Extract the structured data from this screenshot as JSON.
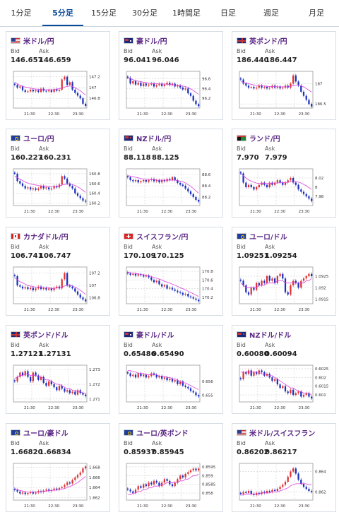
{
  "tabs": [
    {
      "label": "1分足",
      "active": false
    },
    {
      "label": "5分足",
      "active": true
    },
    {
      "label": "15分足",
      "active": false
    },
    {
      "label": "30分足",
      "active": false
    },
    {
      "label": "1時間足",
      "active": false
    },
    {
      "label": "日足",
      "active": false
    },
    {
      "label": "週足",
      "active": false
    },
    {
      "label": "月足",
      "active": false
    }
  ],
  "bid_label": "Bid",
  "ask_label": "Ask",
  "x_ticks": [
    "21:30",
    "22:30",
    "23:30"
  ],
  "colors": {
    "up": "#e03030",
    "down": "#1a2fbf",
    "ma": "#e040e0",
    "grid": "#d0d0d0",
    "title": "#5c2a86"
  },
  "pairs": [
    {
      "name": "米ドル/円",
      "flag": "us",
      "bid": "146.657",
      "ask": "146.659",
      "yticks": [
        "147.2",
        "147",
        "146.8"
      ],
      "series": [
        147.05,
        147.0,
        147.02,
        146.95,
        146.92,
        146.93,
        146.96,
        146.93,
        146.95,
        146.92,
        146.98,
        146.94,
        146.93,
        146.95,
        146.92,
        146.97,
        146.94,
        146.96,
        147.15,
        147.2,
        147.05,
        147.1,
        146.96,
        146.9,
        146.85,
        146.8,
        146.7,
        146.66
      ],
      "ma": [
        147.1,
        147.07,
        147.04,
        147.02,
        147.01,
        147.0,
        146.99,
        146.98,
        146.97,
        146.97,
        146.96,
        146.96,
        146.96,
        146.96,
        146.96,
        146.96,
        146.97,
        146.98,
        146.99,
        147.01,
        147.02,
        147.03,
        147.02,
        147.0,
        146.97,
        146.94,
        146.9,
        146.86
      ],
      "ymin": 146.62,
      "ymax": 147.3
    },
    {
      "name": "豪ドル/円",
      "flag": "au",
      "bid": "96.041",
      "ask": "96.046",
      "yticks": [
        "96.6",
        "96.4",
        "96.2"
      ],
      "series": [
        96.62,
        96.5,
        96.55,
        96.48,
        96.52,
        96.45,
        96.5,
        96.46,
        96.48,
        96.5,
        96.44,
        96.47,
        96.5,
        96.45,
        96.48,
        96.52,
        96.47,
        96.5,
        96.44,
        96.46,
        96.42,
        96.38,
        96.4,
        96.3,
        96.25,
        96.15,
        96.08,
        96.04
      ],
      "ma": [
        96.62,
        96.6,
        96.58,
        96.56,
        96.55,
        96.54,
        96.53,
        96.52,
        96.51,
        96.5,
        96.5,
        96.5,
        96.49,
        96.49,
        96.49,
        96.49,
        96.48,
        96.48,
        96.47,
        96.47,
        96.46,
        96.45,
        96.44,
        96.42,
        96.39,
        96.36,
        96.32,
        96.28
      ],
      "ymin": 96.0,
      "ymax": 96.75
    },
    {
      "name": "英ポンド/円",
      "flag": "gb",
      "bid": "186.440",
      "ask": "186.447",
      "yticks": [
        "187",
        "186.5"
      ],
      "series": [
        187.1,
        187.0,
        186.95,
        186.9,
        186.92,
        186.88,
        186.9,
        186.95,
        186.9,
        186.92,
        186.88,
        186.9,
        186.95,
        186.9,
        186.93,
        186.88,
        186.9,
        186.95,
        186.9,
        187.0,
        187.2,
        187.05,
        186.95,
        186.8,
        186.7,
        186.6,
        186.5,
        186.44
      ],
      "ma": [
        187.05,
        187.03,
        187.01,
        187.0,
        186.98,
        186.97,
        186.96,
        186.95,
        186.95,
        186.94,
        186.93,
        186.93,
        186.93,
        186.93,
        186.92,
        186.92,
        186.92,
        186.92,
        186.92,
        186.93,
        186.95,
        186.96,
        186.96,
        186.94,
        186.92,
        186.88,
        186.84,
        186.79
      ],
      "ymin": 186.4,
      "ymax": 187.3
    },
    {
      "name": "ユーロ/円",
      "flag": "eu",
      "bid": "160.227",
      "ask": "160.231",
      "yticks": [
        "160.8",
        "160.6",
        "160.4",
        "160.2"
      ],
      "series": [
        160.8,
        160.65,
        160.6,
        160.55,
        160.5,
        160.52,
        160.48,
        160.5,
        160.47,
        160.5,
        160.55,
        160.5,
        160.52,
        160.48,
        160.5,
        160.55,
        160.52,
        160.58,
        160.75,
        160.7,
        160.6,
        160.55,
        160.5,
        160.4,
        160.35,
        160.3,
        160.25,
        160.23
      ],
      "ma": [
        160.75,
        160.72,
        160.69,
        160.66,
        160.63,
        160.61,
        160.59,
        160.58,
        160.57,
        160.56,
        160.55,
        160.55,
        160.55,
        160.54,
        160.54,
        160.54,
        160.54,
        160.55,
        160.57,
        160.58,
        160.59,
        160.59,
        160.58,
        160.56,
        160.53,
        160.5,
        160.46,
        160.42
      ],
      "ymin": 160.15,
      "ymax": 160.9
    },
    {
      "name": "NZドル/円",
      "flag": "nz",
      "bid": "88.118",
      "ask": "88.125",
      "yticks": [
        "88.6",
        "88.4",
        "88.2"
      ],
      "series": [
        88.55,
        88.5,
        88.48,
        88.5,
        88.46,
        88.48,
        88.5,
        88.47,
        88.5,
        88.52,
        88.48,
        88.5,
        88.46,
        88.5,
        88.48,
        88.52,
        88.5,
        88.55,
        88.5,
        88.45,
        88.42,
        88.4,
        88.35,
        88.3,
        88.25,
        88.2,
        88.15,
        88.12
      ],
      "ma": [
        88.58,
        88.57,
        88.56,
        88.55,
        88.54,
        88.53,
        88.52,
        88.52,
        88.51,
        88.51,
        88.51,
        88.5,
        88.5,
        88.5,
        88.5,
        88.5,
        88.5,
        88.5,
        88.5,
        88.49,
        88.48,
        88.47,
        88.45,
        88.42,
        88.39,
        88.35,
        88.31,
        88.27
      ],
      "ymin": 88.05,
      "ymax": 88.7
    },
    {
      "name": "ランド/円",
      "flag": "za",
      "bid": "7.970",
      "ask": "7.979",
      "yticks": [
        "8.02",
        "8",
        "7.98"
      ],
      "series": [
        8.03,
        8.01,
        8.0,
        8.005,
        8.0,
        7.995,
        8.0,
        8.005,
        8.01,
        8.005,
        8.0,
        8.01,
        8.005,
        8.01,
        8.015,
        8.01,
        8.005,
        8.01,
        8.015,
        8.02,
        8.01,
        8.005,
        7.995,
        7.99,
        7.985,
        7.98,
        7.975,
        7.97
      ],
      "ma": [
        8.03,
        8.025,
        8.02,
        8.016,
        8.013,
        8.011,
        8.009,
        8.008,
        8.008,
        8.008,
        8.008,
        8.008,
        8.009,
        8.009,
        8.009,
        8.01,
        8.01,
        8.01,
        8.011,
        8.012,
        8.012,
        8.012,
        8.011,
        8.009,
        8.006,
        8.003,
        7.999,
        7.995
      ],
      "ymin": 7.96,
      "ymax": 8.04
    },
    {
      "name": "カナダドル/円",
      "flag": "ca",
      "bid": "106.741",
      "ask": "106.747",
      "yticks": [
        "107.2",
        "107",
        "106.8"
      ],
      "series": [
        107.15,
        107.0,
        106.98,
        106.95,
        106.97,
        106.94,
        106.96,
        106.92,
        106.95,
        106.98,
        106.94,
        106.96,
        106.93,
        106.95,
        106.92,
        106.96,
        106.98,
        106.95,
        107.1,
        107.2,
        107.0,
        106.98,
        106.95,
        106.9,
        106.85,
        106.8,
        106.77,
        106.74
      ],
      "ma": [
        107.12,
        107.09,
        107.06,
        107.04,
        107.02,
        107.0,
        106.99,
        106.98,
        106.97,
        106.97,
        106.96,
        106.96,
        106.96,
        106.96,
        106.95,
        106.95,
        106.96,
        106.96,
        106.97,
        106.99,
        107.0,
        107.0,
        106.99,
        106.97,
        106.95,
        106.92,
        106.89,
        106.85
      ],
      "ymin": 106.7,
      "ymax": 107.3
    },
    {
      "name": "スイスフラン/円",
      "flag": "ch",
      "bid": "170.109",
      "ask": "170.125",
      "yticks": [
        "170.8",
        "170.6",
        "170.4",
        "170.2"
      ],
      "series": [
        170.75,
        170.72,
        170.74,
        170.7,
        170.73,
        170.71,
        170.68,
        170.7,
        170.66,
        170.6,
        170.55,
        170.58,
        170.5,
        170.45,
        170.48,
        170.4,
        170.42,
        170.38,
        170.35,
        170.32,
        170.3,
        170.26,
        170.28,
        170.22,
        170.2,
        170.17,
        170.14,
        170.11
      ],
      "ma": [
        170.78,
        170.77,
        170.76,
        170.75,
        170.74,
        170.73,
        170.72,
        170.71,
        170.7,
        170.68,
        170.66,
        170.64,
        170.62,
        170.6,
        170.57,
        170.55,
        170.53,
        170.5,
        170.48,
        170.45,
        170.42,
        170.4,
        170.37,
        170.34,
        170.31,
        170.28,
        170.25,
        170.22
      ],
      "ymin": 170.05,
      "ymax": 170.9
    },
    {
      "name": "ユーロ/ドル",
      "flag": "eu",
      "bid": "1.09251",
      "ask": "1.09254",
      "yticks": [
        "1.0925",
        "1.092",
        "1.0915"
      ],
      "series": [
        1.0923,
        1.0921,
        1.0918,
        1.0917,
        1.092,
        1.0919,
        1.0922,
        1.0921,
        1.0923,
        1.0922,
        1.0925,
        1.0923,
        1.0924,
        1.0922,
        1.0925,
        1.0926,
        1.0924,
        1.0918,
        1.0917,
        1.0921,
        1.0923,
        1.0922,
        1.092,
        1.0923,
        1.0924,
        1.0925,
        1.0926,
        1.0925
      ],
      "ma": [
        1.0922,
        1.0921,
        1.092,
        1.092,
        1.092,
        1.092,
        1.092,
        1.0921,
        1.0921,
        1.0921,
        1.0922,
        1.0922,
        1.0922,
        1.0922,
        1.0923,
        1.0923,
        1.0923,
        1.0922,
        1.0922,
        1.0922,
        1.0922,
        1.0922,
        1.0922,
        1.0922,
        1.0922,
        1.0923,
        1.0923,
        1.0924
      ],
      "ymin": 1.0913,
      "ymax": 1.0929
    },
    {
      "name": "英ポンド/ドル",
      "flag": "gb",
      "bid": "1.27121",
      "ask": "1.27131",
      "yticks": [
        "1.273",
        "1.272",
        "1.271"
      ],
      "series": [
        1.2722,
        1.2725,
        1.2728,
        1.2726,
        1.2729,
        1.2725,
        1.2722,
        1.2728,
        1.2726,
        1.2723,
        1.2725,
        1.2721,
        1.2719,
        1.2722,
        1.272,
        1.2718,
        1.2716,
        1.2719,
        1.2717,
        1.2715,
        1.2716,
        1.2714,
        1.2715,
        1.2713,
        1.2716,
        1.2714,
        1.2713,
        1.2712
      ],
      "ma": [
        1.2724,
        1.2725,
        1.2726,
        1.2726,
        1.2727,
        1.2727,
        1.2726,
        1.2726,
        1.2726,
        1.2725,
        1.2725,
        1.2724,
        1.2723,
        1.2723,
        1.2722,
        1.2721,
        1.272,
        1.272,
        1.2719,
        1.2718,
        1.2717,
        1.2717,
        1.2716,
        1.2716,
        1.2715,
        1.2715,
        1.2714,
        1.2714
      ],
      "ymin": 1.2708,
      "ymax": 1.2733
    },
    {
      "name": "豪ドル/ドル",
      "flag": "au",
      "bid": "0.65486",
      "ask": "0.65490",
      "yticks": [
        "0.656",
        "0.655"
      ],
      "series": [
        0.6566,
        0.6564,
        0.6565,
        0.6563,
        0.6566,
        0.6564,
        0.6565,
        0.6563,
        0.6564,
        0.6566,
        0.6565,
        0.6563,
        0.6564,
        0.6562,
        0.6563,
        0.6561,
        0.6562,
        0.656,
        0.6561,
        0.6558,
        0.656,
        0.6557,
        0.6556,
        0.6555,
        0.6553,
        0.6552,
        0.655,
        0.6549
      ],
      "ma": [
        0.6568,
        0.6568,
        0.6567,
        0.6567,
        0.6566,
        0.6566,
        0.6566,
        0.6565,
        0.6565,
        0.6565,
        0.6565,
        0.6565,
        0.6564,
        0.6564,
        0.6564,
        0.6563,
        0.6563,
        0.6562,
        0.6562,
        0.6561,
        0.656,
        0.6559,
        0.6559,
        0.6558,
        0.6557,
        0.6556,
        0.6555,
        0.6554
      ],
      "ymin": 0.6545,
      "ymax": 0.6572
    },
    {
      "name": "NZドル/ドル",
      "flag": "nz",
      "bid": "0.60080",
      "ask": "0.60094",
      "yticks": [
        "0.6025",
        "0.602",
        "0.6015",
        "0.601"
      ],
      "series": [
        0.6019,
        0.6023,
        0.6022,
        0.6024,
        0.6021,
        0.6023,
        0.6022,
        0.6024,
        0.6023,
        0.6021,
        0.6022,
        0.602,
        0.6018,
        0.6019,
        0.6016,
        0.6014,
        0.6015,
        0.6012,
        0.6011,
        0.6013,
        0.601,
        0.6011,
        0.6012,
        0.6009,
        0.601,
        0.6011,
        0.6009,
        0.6008
      ],
      "ma": [
        0.6023,
        0.6023,
        0.6023,
        0.6023,
        0.6023,
        0.6023,
        0.6023,
        0.6023,
        0.6022,
        0.6022,
        0.6022,
        0.6021,
        0.6021,
        0.602,
        0.6019,
        0.6018,
        0.6017,
        0.6016,
        0.6015,
        0.6014,
        0.6014,
        0.6013,
        0.6012,
        0.6012,
        0.6011,
        0.6011,
        0.6011,
        0.601
      ],
      "ymin": 0.6006,
      "ymax": 0.6027
    },
    {
      "name": "ユーロ/豪ドル",
      "flag": "eu",
      "bid": "1.66820",
      "ask": "1.66834",
      "yticks": [
        "1.668",
        "1.666",
        "1.664",
        "1.662"
      ],
      "series": [
        1.6635,
        1.6632,
        1.6628,
        1.663,
        1.6627,
        1.6629,
        1.6631,
        1.6628,
        1.663,
        1.6633,
        1.6631,
        1.6634,
        1.6636,
        1.6633,
        1.6635,
        1.6638,
        1.6636,
        1.6639,
        1.6641,
        1.6645,
        1.665,
        1.6648,
        1.6655,
        1.666,
        1.6665,
        1.667,
        1.6678,
        1.6682
      ],
      "ma": [
        1.6638,
        1.6636,
        1.6634,
        1.6633,
        1.6632,
        1.6631,
        1.6631,
        1.6631,
        1.6631,
        1.6631,
        1.6632,
        1.6632,
        1.6633,
        1.6634,
        1.6634,
        1.6635,
        1.6635,
        1.6636,
        1.6637,
        1.6638,
        1.664,
        1.6642,
        1.6644,
        1.6647,
        1.665,
        1.6654,
        1.6658,
        1.6662
      ],
      "ymin": 1.6615,
      "ymax": 1.6688
    },
    {
      "name": "ユーロ/英ポンド",
      "flag": "eu",
      "bid": "0.85937",
      "ask": "0.85945",
      "yticks": [
        "0.8595",
        "0.859",
        "0.8585",
        "0.858"
      ],
      "series": [
        0.8582,
        0.8581,
        0.858,
        0.8582,
        0.8584,
        0.8583,
        0.8585,
        0.8584,
        0.8586,
        0.8585,
        0.8587,
        0.8586,
        0.8584,
        0.8586,
        0.8588,
        0.8587,
        0.8585,
        0.8584,
        0.8586,
        0.8588,
        0.859,
        0.8589,
        0.8591,
        0.8592,
        0.8593,
        0.8594,
        0.8593,
        0.8594
      ],
      "ma": [
        0.8579,
        0.8579,
        0.858,
        0.858,
        0.8581,
        0.8581,
        0.8582,
        0.8582,
        0.8583,
        0.8583,
        0.8584,
        0.8584,
        0.8584,
        0.8585,
        0.8585,
        0.8586,
        0.8586,
        0.8586,
        0.8586,
        0.8586,
        0.8587,
        0.8587,
        0.8588,
        0.8588,
        0.8589,
        0.859,
        0.859,
        0.8591
      ],
      "ymin": 0.8576,
      "ymax": 0.8597
    },
    {
      "name": "米ドル/スイスフラン",
      "flag": "us",
      "bid": "0.86202",
      "ask": "0.86217",
      "yticks": [
        "0.864",
        "0.862"
      ],
      "series": [
        0.8618,
        0.862,
        0.8619,
        0.8621,
        0.8618,
        0.8617,
        0.8619,
        0.8618,
        0.862,
        0.8619,
        0.8621,
        0.862,
        0.8622,
        0.8621,
        0.8623,
        0.8625,
        0.8627,
        0.863,
        0.8635,
        0.864,
        0.8643,
        0.8638,
        0.8632,
        0.8628,
        0.8625,
        0.8623,
        0.8621,
        0.862
      ],
      "ma": [
        0.8617,
        0.8617,
        0.8618,
        0.8618,
        0.8618,
        0.8618,
        0.8618,
        0.8618,
        0.8619,
        0.8619,
        0.8619,
        0.8619,
        0.862,
        0.862,
        0.862,
        0.8621,
        0.8622,
        0.8623,
        0.8624,
        0.8626,
        0.8627,
        0.8628,
        0.8628,
        0.8628,
        0.8628,
        0.8628,
        0.8627,
        0.8627
      ],
      "ymin": 0.8612,
      "ymax": 0.8648
    }
  ]
}
